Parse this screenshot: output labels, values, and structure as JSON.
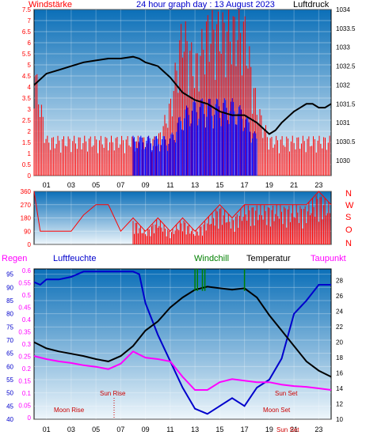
{
  "chart_data": [
    {
      "type": "line",
      "title": "24 hour graph day : 13 August 2023",
      "left_axis_title": "Windstärke",
      "right_axis_title": "Luftdruck",
      "x_ticks": [
        "01",
        "03",
        "05",
        "07",
        "09",
        "11",
        "13",
        "15",
        "17",
        "19",
        "21",
        "23"
      ],
      "left_ticks": [
        "0",
        "0.5",
        "1",
        "1.5",
        "2",
        "2.5",
        "3",
        "3.5",
        "4",
        "4.5",
        "5",
        "5.5",
        "6",
        "6.5",
        "7",
        "7.5"
      ],
      "right_ticks": [
        "1030",
        "1030.5",
        "1031",
        "1031.5",
        "1032",
        "1032.5",
        "1033",
        "1033.5",
        "1034"
      ],
      "left_ylim": [
        0,
        7.5
      ],
      "right_ylim": [
        1029.6,
        1034
      ],
      "xlim": [
        0,
        24
      ],
      "grid": true,
      "series": [
        {
          "name": "Luftdruck",
          "axis": "right",
          "color": "#000000",
          "x": [
            0,
            0.5,
            1,
            2,
            3,
            4,
            5,
            6,
            7,
            8,
            8.5,
            9,
            10,
            11,
            12,
            13,
            14,
            15,
            16,
            17,
            18,
            19,
            19.5,
            20,
            21,
            22,
            22.5,
            23,
            23.5,
            24
          ],
          "y": [
            1032.0,
            1032.15,
            1032.3,
            1032.4,
            1032.5,
            1032.6,
            1032.65,
            1032.7,
            1032.7,
            1032.75,
            1032.7,
            1032.6,
            1032.5,
            1032.2,
            1031.8,
            1031.6,
            1031.5,
            1031.3,
            1031.2,
            1031.2,
            1031.0,
            1030.7,
            1030.8,
            1031.0,
            1031.3,
            1031.5,
            1031.5,
            1031.4,
            1031.4,
            1031.5
          ]
        },
        {
          "name": "Windrichtung-Blue",
          "axis": "left",
          "color": "#0000ff",
          "x": [
            8,
            9,
            10,
            11,
            12,
            13,
            14,
            15,
            16,
            17,
            18
          ],
          "y": [
            1.8,
            1.8,
            1.8,
            1.8,
            3.0,
            3.5,
            3.5,
            3.5,
            3.5,
            3.0,
            1.8
          ]
        },
        {
          "name": "Windgeschwindigkeit-Red",
          "axis": "left",
          "color": "#ff0000",
          "x": [
            0,
            1,
            2,
            3,
            4,
            5,
            6,
            7,
            8,
            9,
            10,
            11,
            12,
            13,
            14,
            15,
            16,
            17,
            18,
            19,
            20,
            21,
            22,
            23,
            24
          ],
          "y": [
            5.5,
            1.8,
            1.8,
            1.8,
            1.8,
            1.8,
            1.8,
            1.8,
            1.8,
            1.8,
            1.8,
            3.5,
            7.5,
            5.5,
            7.5,
            7.5,
            7.5,
            7.5,
            3.5,
            1.8,
            1.8,
            1.8,
            1.8,
            1.8,
            1.8
          ]
        }
      ]
    },
    {
      "type": "line",
      "title": "",
      "x_ticks": [
        "01",
        "03",
        "05",
        "07",
        "09",
        "11",
        "13",
        "15",
        "17",
        "19",
        "21",
        "23"
      ],
      "left_ticks": [
        "0",
        "90",
        "180",
        "270",
        "360"
      ],
      "compass_labels": [
        "N",
        "W",
        "S",
        "O",
        "N"
      ],
      "ylim": [
        0,
        360
      ],
      "xlim": [
        0,
        24
      ],
      "grid": true,
      "series": [
        {
          "name": "Windrichtung",
          "color": "#ff0000",
          "x": [
            0,
            0.5,
            1,
            2,
            3,
            4,
            5,
            6,
            7,
            8,
            9,
            10,
            11,
            12,
            13,
            14,
            15,
            16,
            17,
            18,
            19,
            20,
            21,
            22,
            23,
            24
          ],
          "y": [
            360,
            90,
            90,
            90,
            90,
            200,
            270,
            270,
            90,
            180,
            90,
            180,
            90,
            180,
            90,
            180,
            270,
            180,
            270,
            270,
            270,
            270,
            270,
            270,
            360,
            270
          ]
        }
      ]
    },
    {
      "type": "line",
      "title": "",
      "legend_labels": [
        "Regen",
        "Luftfeuchte",
        "Windchill",
        "Temperatur",
        "Taupunkt"
      ],
      "legend_colors": [
        "#ff00ff",
        "#0000cc",
        "#008000",
        "#000000",
        "#ff00ff"
      ],
      "x_ticks": [
        "01",
        "03",
        "05",
        "07",
        "09",
        "11",
        "13",
        "15",
        "17",
        "19",
        "21",
        "23"
      ],
      "regen_ticks": [
        "0",
        "0.05",
        "0.1",
        "0.15",
        "0.2",
        "0.25",
        "0.3",
        "0.35",
        "0.4",
        "0.45",
        "0.5",
        "0.55",
        "0.6"
      ],
      "feuchte_ticks": [
        "40",
        "45",
        "50",
        "55",
        "60",
        "65",
        "70",
        "75",
        "80",
        "85",
        "90",
        "95"
      ],
      "temp_ticks": [
        "10",
        "12",
        "14",
        "16",
        "18",
        "20",
        "22",
        "24",
        "26",
        "28"
      ],
      "annotations": [
        "Sun Rise",
        "Sun Set",
        "Moon Rise",
        "Moon Set",
        "Sun Set"
      ],
      "ylim_temp": [
        10,
        29.5
      ],
      "ylim_feuchte": [
        40,
        97
      ],
      "xlim": [
        0,
        24
      ],
      "grid": true,
      "series": [
        {
          "name": "Temperatur",
          "axis": "temp",
          "color": "#000000",
          "x": [
            0,
            1,
            2,
            3,
            4,
            5,
            6,
            7,
            8,
            9,
            10,
            11,
            12,
            13,
            14,
            15,
            16,
            17,
            18,
            19,
            20,
            21,
            22,
            23,
            24
          ],
          "y": [
            20,
            19.2,
            18.8,
            18.5,
            18.2,
            17.8,
            17.5,
            18.2,
            19.5,
            21.5,
            22.7,
            24.5,
            25.8,
            26.8,
            27.2,
            27.0,
            26.8,
            27.0,
            25.8,
            23.5,
            21.5,
            19.5,
            17.5,
            16.3,
            15.5
          ]
        },
        {
          "name": "Taupunkt",
          "axis": "temp",
          "color": "#ff00ff",
          "x": [
            0,
            1,
            2,
            3,
            4,
            5,
            6,
            7,
            8,
            9,
            10,
            11,
            12,
            13,
            14,
            15,
            16,
            17,
            18,
            19,
            20,
            21,
            22,
            23,
            24
          ],
          "y": [
            18.2,
            17.8,
            17.5,
            17.3,
            17.0,
            16.8,
            16.5,
            17.2,
            18.8,
            18.0,
            17.8,
            17.5,
            15.5,
            13.8,
            13.8,
            14.8,
            15.2,
            15.0,
            14.8,
            14.8,
            14.5,
            14.3,
            14.2,
            14.0,
            13.8
          ]
        },
        {
          "name": "Luftfeuchte",
          "axis": "feuchte",
          "color": "#0000cc",
          "x": [
            0,
            0.5,
            1,
            2,
            3,
            4,
            5,
            6,
            7,
            8,
            8.5,
            9,
            10,
            11,
            12,
            13,
            14,
            15,
            16,
            17,
            18,
            19,
            20,
            21,
            22,
            23,
            24
          ],
          "y": [
            92,
            91,
            93,
            93,
            94,
            96,
            96,
            96,
            96,
            96,
            95,
            84,
            72,
            62,
            52,
            44,
            42,
            45,
            48,
            45,
            52,
            55,
            63,
            80,
            85,
            91,
            91
          ]
        },
        {
          "name": "Windchill",
          "axis": "temp",
          "color": "#008000",
          "x": [
            13.0,
            13.2,
            13.6,
            13.8,
            17.0
          ],
          "y": [
            28.5,
            28.5,
            28.5,
            28.5,
            28.5
          ]
        }
      ]
    }
  ],
  "colors": {
    "plot_top": "#0b6fb8",
    "plot_bottom": "#eef6fb",
    "frame": "#000000",
    "red_text": "#ff0000",
    "blue_text": "#0000cc",
    "magenta": "#ff00ff",
    "green": "#008000",
    "annotation_red": "#cc0000"
  }
}
